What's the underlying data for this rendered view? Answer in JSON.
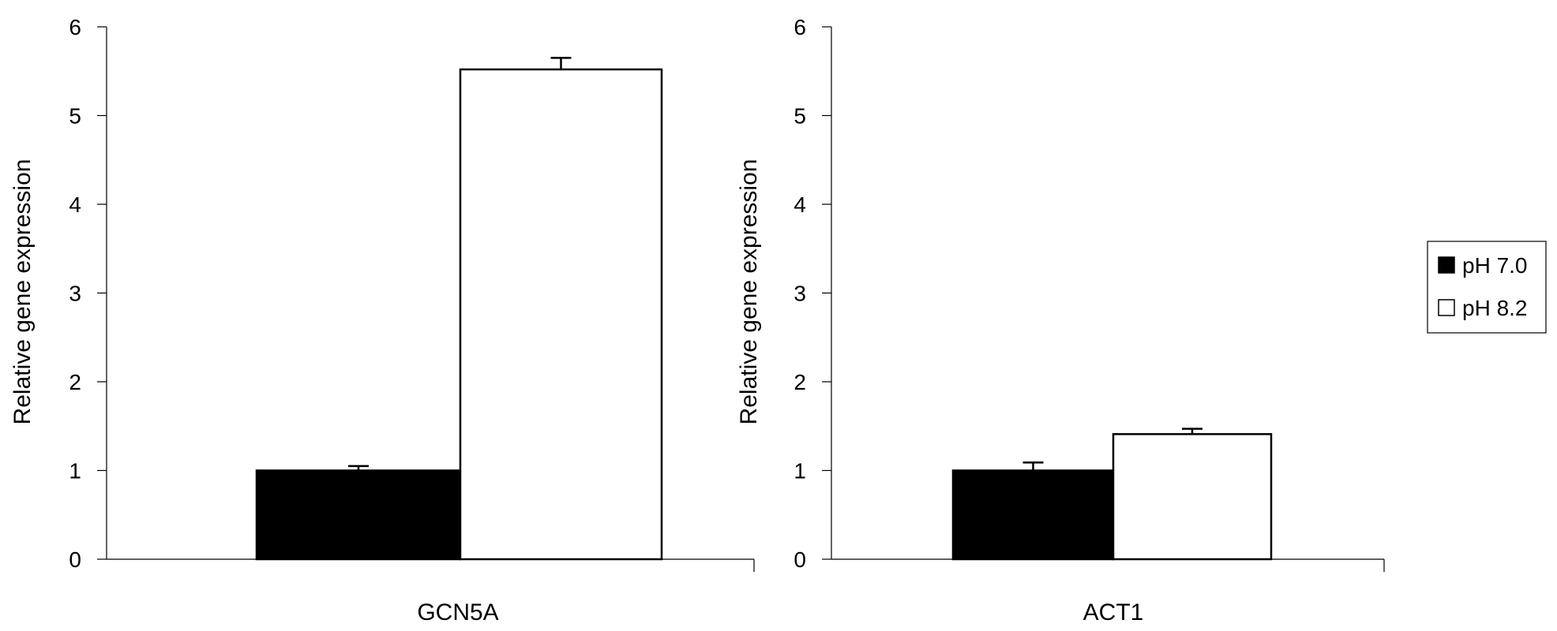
{
  "chart_data": [
    {
      "type": "bar",
      "categories": [
        "GCN5A"
      ],
      "series": [
        {
          "name": "pH 7.0",
          "values": [
            1.0
          ],
          "errors": [
            0.05
          ],
          "color": "#000000"
        },
        {
          "name": "pH 8.2",
          "values": [
            5.52
          ],
          "errors": [
            0.13
          ],
          "color": "#ffffff"
        }
      ],
      "ylabel": "Relative gene expression",
      "ylim": [
        0,
        6
      ],
      "yticks": [
        "0",
        "1",
        "2",
        "3",
        "4",
        "5",
        "6"
      ],
      "grid": false
    },
    {
      "type": "bar",
      "categories": [
        "ACT1"
      ],
      "series": [
        {
          "name": "pH 7.0",
          "values": [
            1.0
          ],
          "errors": [
            0.09
          ],
          "color": "#000000"
        },
        {
          "name": "pH 8.2",
          "values": [
            1.41
          ],
          "errors": [
            0.06
          ],
          "color": "#ffffff"
        }
      ],
      "ylabel": "Relative gene expression",
      "ylim": [
        0,
        6
      ],
      "yticks": [
        "0",
        "1",
        "2",
        "3",
        "4",
        "5",
        "6"
      ],
      "grid": false
    }
  ],
  "legend": {
    "placement": "right",
    "items": [
      {
        "label": "pH 7.0",
        "color": "#000000"
      },
      {
        "label": "pH 8.2",
        "color": "#ffffff"
      }
    ]
  }
}
